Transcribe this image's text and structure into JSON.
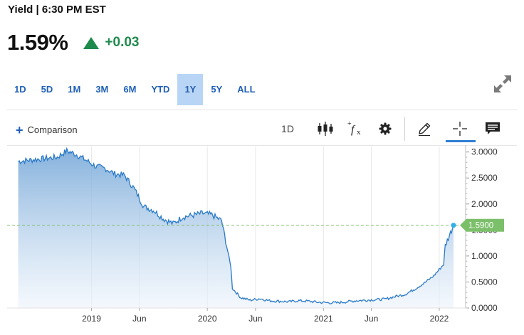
{
  "header": {
    "title": "Yield | 6:30 PM EST",
    "price": "1.59%",
    "change": "+0.03",
    "change_color": "#1e8a4c"
  },
  "ranges": [
    {
      "label": "1D",
      "active": false
    },
    {
      "label": "5D",
      "active": false
    },
    {
      "label": "1M",
      "active": false
    },
    {
      "label": "3M",
      "active": false
    },
    {
      "label": "6M",
      "active": false
    },
    {
      "label": "YTD",
      "active": false
    },
    {
      "label": "1Y",
      "active": true
    },
    {
      "label": "5Y",
      "active": false
    },
    {
      "label": "ALL",
      "active": false
    }
  ],
  "toolbar": {
    "comparison_label": "Comparison",
    "interval_label": "1D",
    "icons": [
      "candlestick-icon",
      "fx-icon",
      "gear-icon",
      "pencil-icon",
      "crosshair-icon",
      "comment-icon"
    ]
  },
  "chart_data": {
    "type": "area",
    "x_ticks": [
      "2019",
      "Jun",
      "2020",
      "Jun",
      "2021",
      "Jun",
      "2022"
    ],
    "y_ticks": [
      "3.0000",
      "2.5000",
      "2.0000",
      "1.5000",
      "1.0000",
      "0.5000",
      "0.0000"
    ],
    "ylim": [
      0,
      3.05
    ],
    "current_value_label": "1.5900",
    "current_value": 1.59,
    "accent_color": "#2a7ac7",
    "label_bg_color": "#7cbf6a",
    "x_dates": [
      "2018-05",
      "2018-07",
      "2018-09",
      "2018-10",
      "2018-11",
      "2018-12",
      "2019-01",
      "2019-02",
      "2019-03",
      "2019-04",
      "2019-05",
      "2019-06",
      "2019-07",
      "2019-08",
      "2019-09",
      "2019-10",
      "2019-11",
      "2019-12",
      "2020-01",
      "2020-02",
      "2020-03",
      "2020-03-20",
      "2020-04",
      "2020-05",
      "2020-06",
      "2020-07",
      "2020-08",
      "2020-09",
      "2020-10",
      "2020-11",
      "2020-12",
      "2021-01",
      "2021-02",
      "2021-03",
      "2021-04",
      "2021-05",
      "2021-06",
      "2021-07",
      "2021-08",
      "2021-09",
      "2021-10",
      "2021-11",
      "2021-12",
      "2022-01",
      "2022-01-20",
      "2022-02"
    ],
    "values": [
      2.82,
      2.86,
      2.9,
      3.02,
      2.95,
      2.84,
      2.72,
      2.68,
      2.58,
      2.55,
      2.3,
      1.95,
      1.88,
      1.72,
      1.62,
      1.75,
      1.78,
      1.82,
      1.79,
      1.68,
      0.8,
      0.38,
      0.2,
      0.15,
      0.18,
      0.14,
      0.13,
      0.12,
      0.14,
      0.13,
      0.11,
      0.1,
      0.1,
      0.12,
      0.14,
      0.15,
      0.16,
      0.17,
      0.22,
      0.26,
      0.36,
      0.48,
      0.62,
      0.84,
      1.2,
      1.59
    ]
  }
}
